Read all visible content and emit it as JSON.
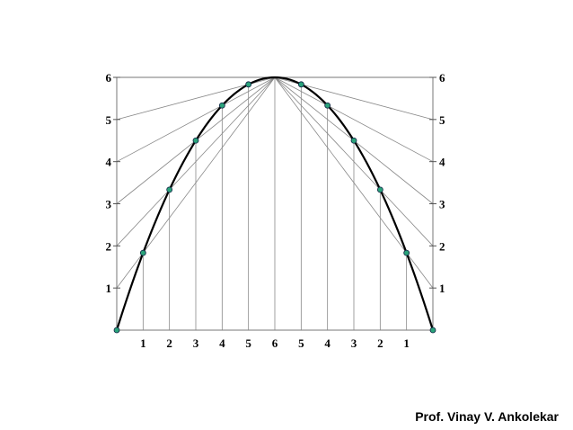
{
  "diagram": {
    "left_scale": {
      "labels": [
        "1",
        "2",
        "3",
        "4",
        "5",
        "6"
      ]
    },
    "right_scale": {
      "labels": [
        "1",
        "2",
        "3",
        "4",
        "5",
        "6"
      ]
    },
    "bottom_scale": {
      "labels": [
        "1",
        "2",
        "3",
        "4",
        "5",
        "6",
        "5",
        "4",
        "3",
        "2",
        "1"
      ]
    }
  },
  "footer": {
    "author": "Prof. Vinay V. Ankolekar"
  }
}
